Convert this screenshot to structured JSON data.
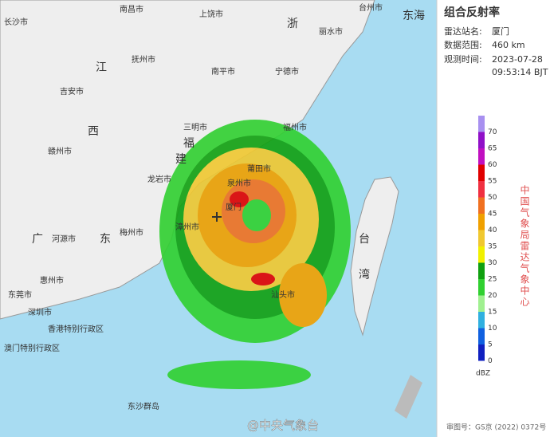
{
  "panel": {
    "title": "组合反射率",
    "station_label": "雷达站名:",
    "station": "厦门",
    "range_label": "数据范围:",
    "range": "460 km",
    "time_label": "观测时间:",
    "date": "2023-07-28",
    "time": "09:53:14 BJT",
    "agency": "中国气象局雷达气象中心",
    "unit": "dBZ",
    "approval": "审图号：GS京 (2022) 0372号"
  },
  "legend": [
    {
      "value": 70,
      "color": "#a890f0"
    },
    {
      "value": 65,
      "color": "#9010c8"
    },
    {
      "value": 60,
      "color": "#c010c0"
    },
    {
      "value": 55,
      "color": "#e00000"
    },
    {
      "value": 50,
      "color": "#f03040"
    },
    {
      "value": 45,
      "color": "#f07020"
    },
    {
      "value": 40,
      "color": "#f0a000"
    },
    {
      "value": 35,
      "color": "#f0c830"
    },
    {
      "value": 30,
      "color": "#f0f000"
    },
    {
      "value": 25,
      "color": "#10a010"
    },
    {
      "value": 20,
      "color": "#30d030"
    },
    {
      "value": 15,
      "color": "#a0f090"
    },
    {
      "value": 10,
      "color": "#30b0e0"
    },
    {
      "value": 5,
      "color": "#1060e0"
    },
    {
      "value": 0,
      "color": "#1020c0"
    }
  ],
  "watermark": "@中央气象台",
  "places": [
    "长沙市",
    "南昌市",
    "上饶市",
    "丽水市",
    "台州市",
    "吉安市",
    "抚州市",
    "南平市",
    "宁德市",
    "福州市",
    "三明市",
    "泉州市",
    "厦门",
    "龙岩市",
    "莆田市",
    "漳州市",
    "梅州市",
    "赣州市",
    "河源市",
    "汕头市",
    "惠州市",
    "深圳市",
    "东莞市",
    "香港特别行政区",
    "澳门特别行政区",
    "东沙群岛",
    "台",
    "湾",
    "江",
    "西",
    "福",
    "建",
    "广",
    "东",
    "浙",
    "东海"
  ]
}
